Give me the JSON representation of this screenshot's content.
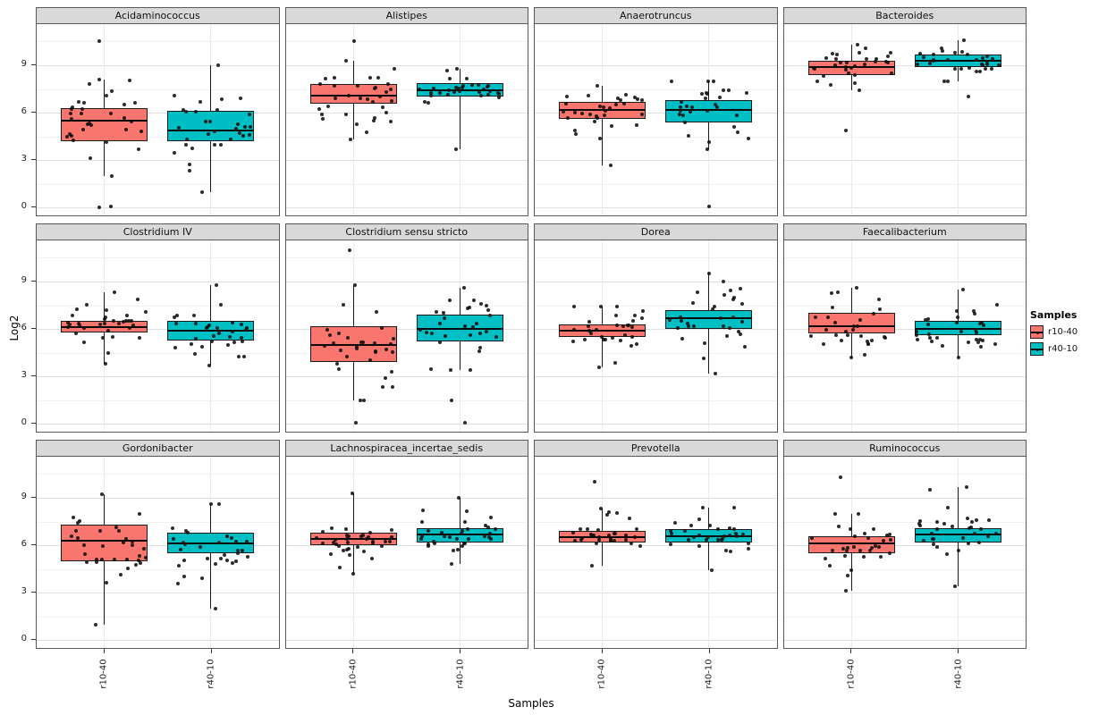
{
  "axes": {
    "y_label": "Log2",
    "x_label": "Samples",
    "y_ticks": [
      0,
      3,
      6,
      9
    ],
    "y_minor_ticks": [
      1.5,
      4.5,
      7.5,
      10.5
    ],
    "x_categories": [
      "r10-40",
      "r40-10"
    ]
  },
  "legend": {
    "title": "Samples",
    "items": [
      {
        "label": "r10-40",
        "color": "#F8766D"
      },
      {
        "label": "r40-10",
        "color": "#00BFC4"
      }
    ]
  },
  "chart_data": {
    "type": "boxplot",
    "title": "",
    "xlabel": "Samples",
    "ylabel": "Log2",
    "facet_grid": [
      3,
      4
    ],
    "ylim": [
      -0.6,
      11.6
    ],
    "x_categories": [
      "r10-40",
      "r40-10"
    ],
    "series_colors": {
      "r10-40": "#F8766D",
      "r40-10": "#00BFC4"
    },
    "facets": [
      {
        "title": "Acidaminococcus",
        "groups": [
          {
            "sample": "r10-40",
            "lo": 2.0,
            "q1": 4.2,
            "median": 5.5,
            "q3": 6.3,
            "hi": 8.1,
            "outliers": [
              10.5,
              0.0,
              0.1
            ],
            "n": 30
          },
          {
            "sample": "r40-10",
            "lo": 1.0,
            "q1": 4.2,
            "median": 4.9,
            "q3": 6.1,
            "hi": 9.0,
            "outliers": [],
            "n": 30
          }
        ]
      },
      {
        "title": "Alistipes",
        "groups": [
          {
            "sample": "r10-40",
            "lo": 4.3,
            "q1": 6.6,
            "median": 7.1,
            "q3": 7.8,
            "hi": 9.3,
            "outliers": [
              10.5
            ],
            "n": 32
          },
          {
            "sample": "r40-10",
            "lo": 3.7,
            "q1": 7.0,
            "median": 7.4,
            "q3": 7.9,
            "hi": 8.8,
            "outliers": [],
            "n": 30
          }
        ]
      },
      {
        "title": "Anaerotruncus",
        "groups": [
          {
            "sample": "r10-40",
            "lo": 2.7,
            "q1": 5.6,
            "median": 6.2,
            "q3": 6.7,
            "hi": 7.7,
            "outliers": [],
            "n": 30
          },
          {
            "sample": "r40-10",
            "lo": 3.7,
            "q1": 5.4,
            "median": 6.2,
            "q3": 6.8,
            "hi": 8.0,
            "outliers": [
              0.1
            ],
            "n": 28
          }
        ]
      },
      {
        "title": "Bacteroides",
        "groups": [
          {
            "sample": "r10-40",
            "lo": 7.4,
            "q1": 8.4,
            "median": 8.9,
            "q3": 9.3,
            "hi": 10.3,
            "outliers": [
              4.9
            ],
            "n": 30
          },
          {
            "sample": "r40-10",
            "lo": 8.0,
            "q1": 8.9,
            "median": 9.3,
            "q3": 9.7,
            "hi": 10.6,
            "outliers": [
              7.0
            ],
            "n": 30
          }
        ]
      },
      {
        "title": "Clostridium IV",
        "groups": [
          {
            "sample": "r10-40",
            "lo": 3.8,
            "q1": 5.8,
            "median": 6.1,
            "q3": 6.5,
            "hi": 8.3,
            "outliers": [],
            "n": 32
          },
          {
            "sample": "r40-10",
            "lo": 3.7,
            "q1": 5.3,
            "median": 5.9,
            "q3": 6.5,
            "hi": 8.8,
            "outliers": [],
            "n": 30
          }
        ]
      },
      {
        "title": "Clostridium sensu stricto",
        "groups": [
          {
            "sample": "r10-40",
            "lo": 1.5,
            "q1": 3.9,
            "median": 5.0,
            "q3": 6.2,
            "hi": 8.8,
            "outliers": [
              11.0,
              0.1
            ],
            "n": 30
          },
          {
            "sample": "r40-10",
            "lo": 3.4,
            "q1": 5.2,
            "median": 6.0,
            "q3": 6.9,
            "hi": 8.6,
            "outliers": [
              0.1,
              1.5
            ],
            "n": 28
          }
        ]
      },
      {
        "title": "Dorea",
        "groups": [
          {
            "sample": "r10-40",
            "lo": 3.6,
            "q1": 5.5,
            "median": 5.9,
            "q3": 6.3,
            "hi": 7.4,
            "outliers": [],
            "n": 30
          },
          {
            "sample": "r40-10",
            "lo": 3.2,
            "q1": 6.0,
            "median": 6.7,
            "q3": 7.2,
            "hi": 9.5,
            "outliers": [],
            "n": 30
          }
        ]
      },
      {
        "title": "Faecalibacterium",
        "groups": [
          {
            "sample": "r10-40",
            "lo": 4.2,
            "q1": 5.7,
            "median": 6.2,
            "q3": 7.0,
            "hi": 8.6,
            "outliers": [],
            "n": 28
          },
          {
            "sample": "r40-10",
            "lo": 4.2,
            "q1": 5.6,
            "median": 6.0,
            "q3": 6.5,
            "hi": 8.5,
            "outliers": [],
            "n": 30
          }
        ]
      },
      {
        "title": "Gordonibacter",
        "groups": [
          {
            "sample": "r10-40",
            "lo": 1.0,
            "q1": 5.0,
            "median": 6.3,
            "q3": 7.3,
            "hi": 9.2,
            "outliers": [],
            "n": 32
          },
          {
            "sample": "r40-10",
            "lo": 2.0,
            "q1": 5.5,
            "median": 6.1,
            "q3": 6.8,
            "hi": 8.6,
            "outliers": [],
            "n": 30
          }
        ]
      },
      {
        "title": "Lachnospiracea_incertae_sedis",
        "groups": [
          {
            "sample": "r10-40",
            "lo": 4.2,
            "q1": 6.0,
            "median": 6.4,
            "q3": 6.8,
            "hi": 9.3,
            "outliers": [],
            "n": 34
          },
          {
            "sample": "r40-10",
            "lo": 4.8,
            "q1": 6.2,
            "median": 6.7,
            "q3": 7.1,
            "hi": 9.0,
            "outliers": [],
            "n": 32
          }
        ]
      },
      {
        "title": "Prevotella",
        "groups": [
          {
            "sample": "r10-40",
            "lo": 4.7,
            "q1": 6.2,
            "median": 6.5,
            "q3": 6.9,
            "hi": 8.3,
            "outliers": [
              10.0
            ],
            "n": 30
          },
          {
            "sample": "r40-10",
            "lo": 4.4,
            "q1": 6.2,
            "median": 6.6,
            "q3": 7.0,
            "hi": 8.4,
            "outliers": [],
            "n": 30
          }
        ]
      },
      {
        "title": "Ruminococcus",
        "groups": [
          {
            "sample": "r10-40",
            "lo": 3.1,
            "q1": 5.5,
            "median": 6.1,
            "q3": 6.6,
            "hi": 8.0,
            "outliers": [
              10.3
            ],
            "n": 30
          },
          {
            "sample": "r40-10",
            "lo": 3.4,
            "q1": 6.2,
            "median": 6.7,
            "q3": 7.1,
            "hi": 9.7,
            "outliers": [],
            "n": 30
          }
        ]
      }
    ]
  }
}
